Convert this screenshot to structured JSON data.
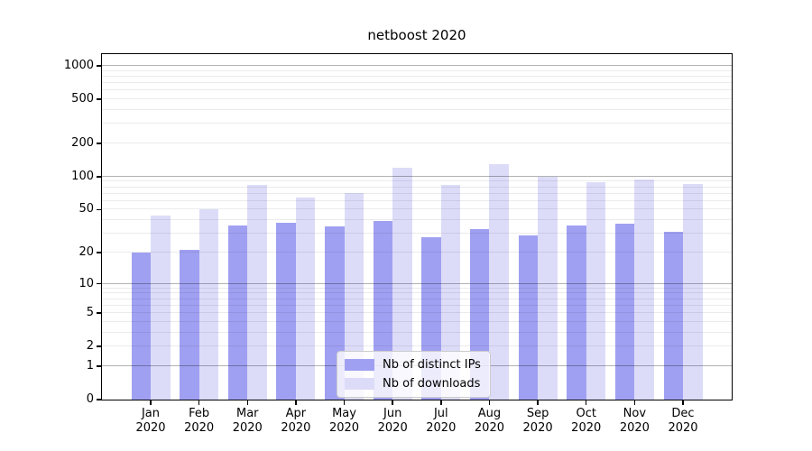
{
  "title": "netboost 2020",
  "legend": {
    "items": [
      {
        "label": "Nb of distinct IPs",
        "color": "#a0a0f2",
        "slug": "distinct-ips"
      },
      {
        "label": "Nb of downloads",
        "color": "#dcdcf9",
        "slug": "downloads"
      }
    ]
  },
  "chart_data": {
    "type": "bar",
    "title": "netboost 2020",
    "categories": [
      "Jan 2020",
      "Feb 2020",
      "Mar 2020",
      "Apr 2020",
      "May 2020",
      "Jun 2020",
      "Jul 2020",
      "Aug 2020",
      "Sep 2020",
      "Oct 2020",
      "Nov 2020",
      "Dec 2020"
    ],
    "series": [
      {
        "name": "Nb of distinct IPs",
        "slug": "distinct-ips",
        "color": "#a0a0f2",
        "values": [
          20,
          21,
          36,
          38,
          35,
          39,
          28,
          33,
          29,
          36,
          37,
          31
        ]
      },
      {
        "name": "Nb of downloads",
        "slug": "downloads",
        "color": "#dcdcf9",
        "values": [
          44,
          50,
          84,
          64,
          71,
          120,
          84,
          130,
          100,
          89,
          94,
          86
        ]
      }
    ],
    "xlabel": "",
    "ylabel": "",
    "yscale": "log10(value+1)",
    "yticks": [
      0,
      1,
      2,
      5,
      10,
      20,
      50,
      100,
      200,
      500,
      1000
    ],
    "ylim": [
      0,
      1275
    ],
    "grid": {
      "horizontal": true,
      "major_at": [
        1,
        10,
        100,
        1000
      ],
      "minor": "2-9 per decade",
      "drawn_above_bars": true
    },
    "legend_position": "lower center"
  }
}
